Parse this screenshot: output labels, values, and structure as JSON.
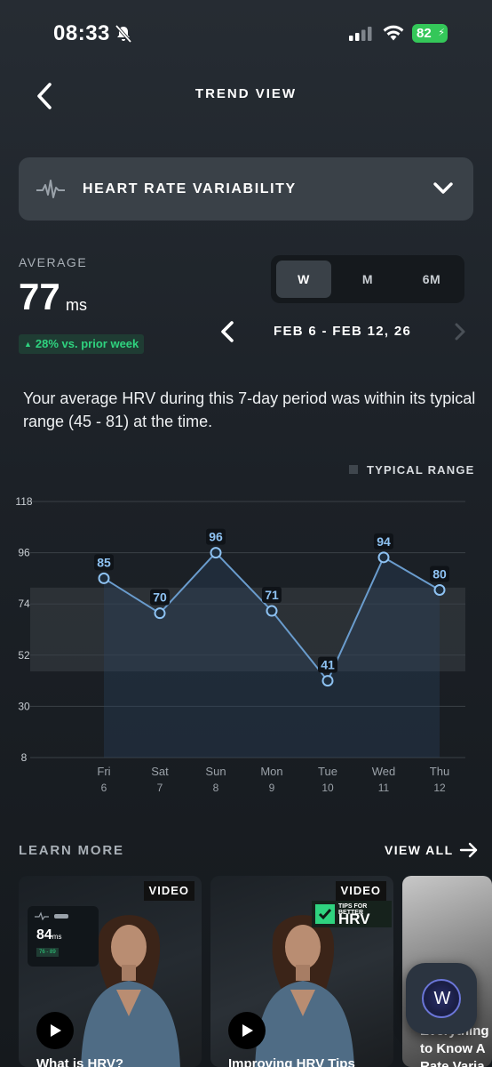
{
  "status_bar": {
    "time": "08:33",
    "battery": "82"
  },
  "nav": {
    "title": "TREND VIEW"
  },
  "metric_selector": {
    "label": "HEART RATE VARIABILITY"
  },
  "average": {
    "label": "AVERAGE",
    "value": "77",
    "unit": "ms",
    "change": "28% vs. prior week"
  },
  "period_tabs": [
    {
      "label": "W",
      "active": true
    },
    {
      "label": "M",
      "active": false
    },
    {
      "label": "6M",
      "active": false
    }
  ],
  "date_range": "FEB 6 - FEB 12, 26",
  "summary": "Your average HRV during this 7-day period was within its typical range (45 - 81) at the time.",
  "legend": {
    "label": "TYPICAL RANGE"
  },
  "chart_data": {
    "type": "line",
    "x": [
      "Fri 6",
      "Sat 7",
      "Sun 8",
      "Mon 9",
      "Tue 10",
      "Wed 11",
      "Thu 12"
    ],
    "x_days": [
      "Fri",
      "Sat",
      "Sun",
      "Mon",
      "Tue",
      "Wed",
      "Thu"
    ],
    "x_dates": [
      "6",
      "7",
      "8",
      "9",
      "10",
      "11",
      "12"
    ],
    "series": [
      {
        "values": [
          85,
          70,
          96,
          71,
          41,
          94,
          80
        ]
      }
    ],
    "yticks": [
      118,
      96,
      74,
      52,
      30,
      8
    ],
    "ylim": [
      8,
      118
    ],
    "typical_range": [
      45,
      81
    ],
    "grid": true,
    "colors": {
      "line": "#6a9ccd",
      "point_fill": "#1e2d3c",
      "label_bg": "#0f1318",
      "label_text": "#8ec2f2",
      "range_band": "#3a4046"
    }
  },
  "learn_more": {
    "title": "LEARN MORE",
    "view_all": "VIEW ALL",
    "cards": [
      {
        "tag": "VIDEO",
        "title": "What is HRV?",
        "panel_value": "84",
        "panel_unit": "ms",
        "panel_range": "76 - 89"
      },
      {
        "tag": "VIDEO",
        "title": "Improving HRV Tips",
        "badge_small": "TIPS FOR BETTER",
        "badge_big": "HRV"
      },
      {
        "title_lines": [
          "Everything",
          "to Know A",
          "Rate Varia"
        ]
      }
    ]
  },
  "fab": {
    "letter": "W"
  },
  "colors": {
    "accent_green": "#2fd37f",
    "battery_green": "#34c759",
    "surface": "#3a4148"
  }
}
